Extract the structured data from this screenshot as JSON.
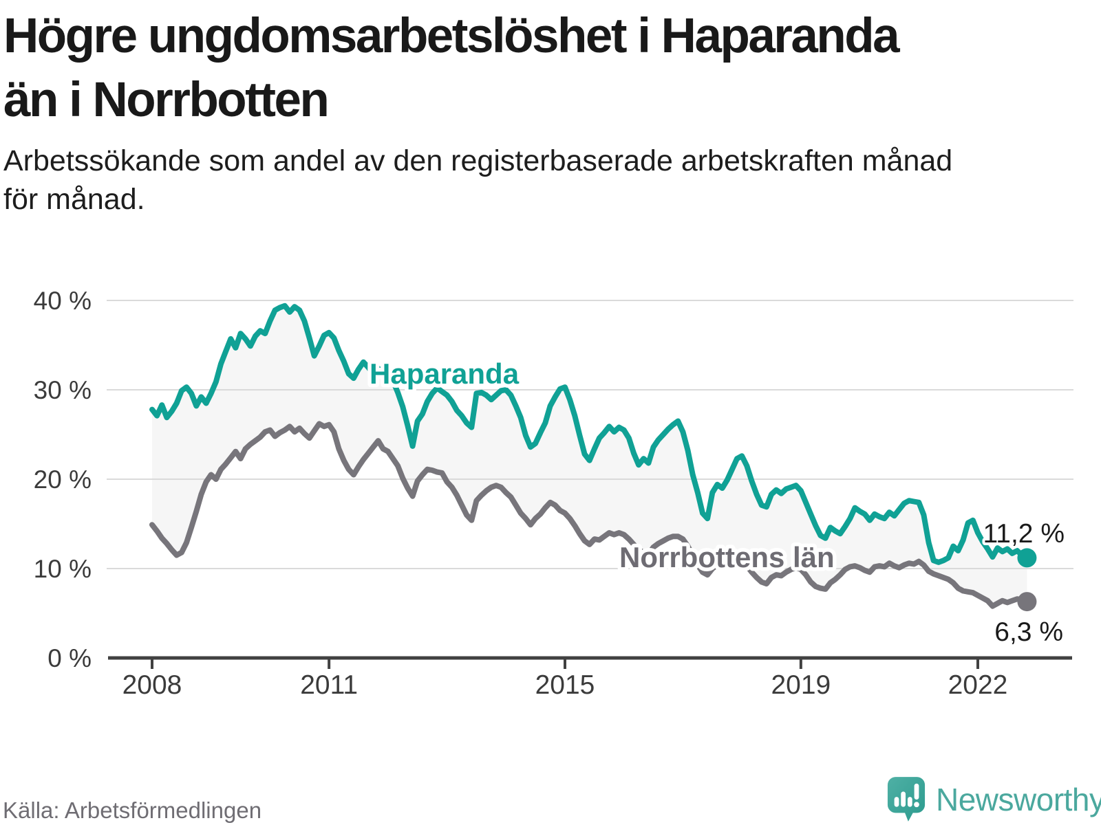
{
  "header": {
    "title_line1": "Högre ungdomsarbetslöshet i Haparanda",
    "title_line2": "än i Norrbotten",
    "subtitle_line1": "Arbetssökande som andel av den registerbaserade arbetskraften månad",
    "subtitle_line2": "för månad."
  },
  "footer": {
    "source": "Källa: Arbetsförmedlingen",
    "logo_text": "Newsworthy"
  },
  "colors": {
    "haparanda": "#10a195",
    "norrbotten": "#77757b",
    "norrbotten_label": "#6e6c73",
    "fill_between": "#f5f5f5",
    "gridline": "#dadada",
    "axis": "#414141",
    "tick_text": "#3b3b3b",
    "value_label": "#1a1a1a",
    "logo_teal_light": "#4fb0a5",
    "logo_teal_dark": "#2c9b8e"
  },
  "chart_data": {
    "type": "line",
    "title": "",
    "xlabel": "",
    "ylabel": "",
    "x_unit": "month",
    "x_start": "2008-01",
    "x_end": "2022-11",
    "ylim": [
      0,
      42
    ],
    "grid": "horizontal",
    "yticks": [
      {
        "label": "40 %",
        "value": 40
      },
      {
        "label": "30 %",
        "value": 30
      },
      {
        "label": "20 %",
        "value": 20
      },
      {
        "label": "10 %",
        "value": 10
      },
      {
        "label": "0 %",
        "value": 0
      }
    ],
    "xticks": [
      {
        "label": "2008",
        "year": 2008
      },
      {
        "label": "2011",
        "year": 2011
      },
      {
        "label": "2015",
        "year": 2015
      },
      {
        "label": "2019",
        "year": 2019
      },
      {
        "label": "2022",
        "year": 2022
      }
    ],
    "series": [
      {
        "name": "Haparanda",
        "end_label": "11,2 %",
        "values": [
          27.8,
          27.1,
          28.3,
          26.9,
          27.6,
          28.5,
          29.9,
          30.3,
          29.6,
          28.2,
          29.2,
          28.5,
          29.6,
          30.9,
          32.9,
          34.3,
          35.7,
          34.7,
          36.3,
          35.7,
          34.9,
          36.0,
          36.6,
          36.3,
          37.7,
          38.9,
          39.2,
          39.4,
          38.7,
          39.3,
          38.9,
          37.7,
          35.8,
          33.8,
          34.9,
          36.1,
          36.4,
          35.8,
          34.4,
          33.2,
          31.8,
          31.3,
          32.3,
          33.1,
          32.5,
          31.8,
          32.4,
          31.9,
          31.5,
          31.0,
          29.7,
          28.1,
          26.0,
          23.7,
          26.5,
          27.3,
          28.7,
          29.6,
          30.2,
          29.8,
          29.4,
          28.7,
          27.7,
          27.1,
          26.3,
          25.8,
          29.6,
          29.7,
          29.4,
          28.9,
          29.4,
          29.9,
          30.0,
          29.4,
          28.2,
          26.9,
          24.9,
          23.6,
          24.0,
          25.2,
          26.3,
          28.2,
          29.2,
          30.1,
          30.3,
          28.9,
          27.1,
          24.9,
          22.8,
          22.1,
          23.4,
          24.6,
          25.2,
          25.9,
          25.3,
          25.8,
          25.5,
          24.6,
          22.9,
          21.6,
          22.3,
          21.8,
          23.6,
          24.4,
          25.0,
          25.6,
          26.1,
          26.5,
          25.3,
          23.2,
          20.5,
          18.5,
          16.2,
          15.6,
          18.5,
          19.4,
          19.0,
          19.9,
          21.1,
          22.3,
          22.6,
          21.5,
          19.8,
          18.3,
          17.1,
          16.9,
          18.3,
          18.8,
          18.4,
          18.9,
          19.1,
          19.3,
          18.7,
          17.4,
          16.1,
          14.8,
          13.7,
          13.4,
          14.6,
          14.2,
          13.9,
          14.7,
          15.6,
          16.8,
          16.4,
          16.1,
          15.4,
          16.1,
          15.8,
          15.6,
          16.3,
          15.9,
          16.6,
          17.3,
          17.6,
          17.5,
          17.4,
          16.0,
          12.9,
          10.9,
          10.7,
          10.9,
          11.2,
          12.5,
          12.0,
          13.2,
          15.1,
          15.4,
          14.0,
          13.0,
          12.2,
          11.3,
          12.3,
          11.9,
          12.2,
          11.7,
          12.0,
          11.5,
          11.2
        ]
      },
      {
        "name": "Norrbottens län",
        "end_label": "6,3 %",
        "values": [
          14.9,
          14.2,
          13.4,
          12.8,
          12.1,
          11.5,
          11.8,
          12.9,
          14.6,
          16.4,
          18.3,
          19.7,
          20.5,
          20.0,
          21.1,
          21.7,
          22.4,
          23.1,
          22.3,
          23.4,
          23.9,
          24.3,
          24.7,
          25.3,
          25.5,
          24.8,
          25.2,
          25.5,
          25.9,
          25.3,
          25.7,
          25.1,
          24.6,
          25.4,
          26.2,
          25.9,
          26.1,
          25.3,
          23.4,
          22.1,
          21.1,
          20.5,
          21.4,
          22.2,
          22.9,
          23.6,
          24.3,
          23.4,
          23.1,
          22.3,
          21.5,
          20.1,
          19.0,
          18.1,
          19.8,
          20.5,
          21.1,
          21.0,
          20.8,
          20.7,
          19.7,
          19.1,
          18.2,
          17.1,
          16.0,
          15.4,
          17.6,
          18.2,
          18.7,
          19.1,
          19.3,
          19.1,
          18.5,
          18.0,
          17.1,
          16.2,
          15.6,
          14.9,
          15.6,
          16.1,
          16.8,
          17.4,
          17.1,
          16.5,
          16.2,
          15.6,
          14.8,
          13.9,
          13.1,
          12.7,
          13.3,
          13.2,
          13.6,
          14.0,
          13.8,
          14.0,
          13.8,
          13.3,
          12.7,
          12.1,
          11.8,
          11.6,
          12.4,
          12.8,
          13.1,
          13.4,
          13.6,
          13.6,
          13.3,
          12.5,
          11.5,
          10.4,
          9.6,
          9.3,
          10.0,
          10.4,
          10.3,
          10.7,
          11.0,
          11.1,
          10.8,
          10.3,
          9.6,
          9.0,
          8.5,
          8.3,
          9.0,
          9.3,
          9.2,
          9.6,
          9.9,
          10.1,
          9.9,
          9.3,
          8.5,
          8.0,
          7.8,
          7.7,
          8.4,
          8.8,
          9.3,
          9.9,
          10.2,
          10.3,
          10.1,
          9.8,
          9.6,
          10.2,
          10.3,
          10.2,
          10.6,
          10.3,
          10.1,
          10.4,
          10.6,
          10.5,
          10.8,
          10.4,
          9.7,
          9.4,
          9.2,
          9.0,
          8.8,
          8.4,
          7.8,
          7.5,
          7.4,
          7.3,
          7.0,
          6.7,
          6.4,
          5.8,
          6.1,
          6.4,
          6.2,
          6.4,
          6.6,
          6.5,
          6.3
        ]
      }
    ],
    "legend_position": "inline-labels"
  }
}
